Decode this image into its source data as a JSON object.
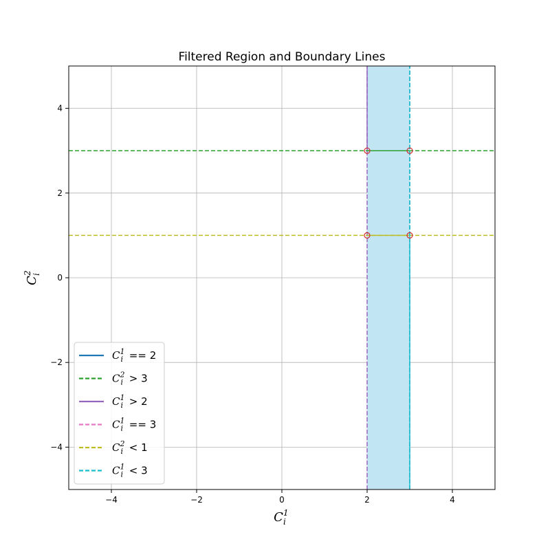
{
  "chart_data": {
    "type": "line",
    "title": "Filtered Region and Boundary Lines",
    "xlabel": {
      "base": "C",
      "sub": "i",
      "sup": "1"
    },
    "ylabel": {
      "base": "C",
      "sub": "i",
      "sup": "2"
    },
    "xlim": [
      -5,
      5
    ],
    "ylim": [
      -5,
      5
    ],
    "grid": true,
    "x_ticks": [
      -4,
      -2,
      0,
      2,
      4
    ],
    "y_ticks": [
      -4,
      -2,
      0,
      2,
      4
    ],
    "x_tick_labels": [
      "−4",
      "−2",
      "0",
      "2",
      "4"
    ],
    "y_tick_labels": [
      "−4",
      "−2",
      "0",
      "2",
      "4"
    ],
    "shaded_region": {
      "x": [
        2,
        3
      ],
      "y": [
        -5,
        5
      ],
      "color": "#c2e5f4"
    },
    "series": [
      {
        "name": "== 2",
        "var": {
          "base": "C",
          "sub": "i",
          "sup": "1"
        },
        "orientation": "vertical",
        "value": 2,
        "range": [
          3,
          5
        ],
        "color": "#9467bd",
        "dashed": false,
        "legend_color": "#1f77b4",
        "legend_dashed": false
      },
      {
        "name": "> 3",
        "var": {
          "base": "C",
          "sub": "i",
          "sup": "2"
        },
        "orientation": "horizontal",
        "value": 3,
        "range": [
          -5,
          5
        ],
        "color": "#2ca02c",
        "dashed": true,
        "legend_color": "#2ca02c",
        "legend_dashed": true
      },
      {
        "name": "> 2",
        "var": {
          "base": "C",
          "sub": "i",
          "sup": "1"
        },
        "orientation": "vertical",
        "value": 2,
        "range": [
          -5,
          5
        ],
        "color": "#9467bd",
        "dashed": true,
        "legend_color": "#9467bd",
        "legend_dashed": false
      },
      {
        "name": "== 3",
        "var": {
          "base": "C",
          "sub": "i",
          "sup": "1"
        },
        "orientation": "vertical",
        "value": 3,
        "range": [
          -5,
          5
        ],
        "color": "#e377c2",
        "dashed": true,
        "legend_color": "#e377c2",
        "legend_dashed": true
      },
      {
        "name": "< 1",
        "var": {
          "base": "C",
          "sub": "i",
          "sup": "2"
        },
        "orientation": "horizontal",
        "value": 1,
        "range": [
          -5,
          5
        ],
        "color": "#bcbd22",
        "dashed": true,
        "legend_color": "#bcbd22",
        "legend_dashed": true
      },
      {
        "name": "< 3",
        "var": {
          "base": "C",
          "sub": "i",
          "sup": "1"
        },
        "orientation": "vertical",
        "value": 3,
        "range": [
          -5,
          5
        ],
        "color": "#17becf",
        "dashed": true,
        "legend_color": "#17becf",
        "legend_dashed": true
      }
    ],
    "segments": [
      {
        "x": [
          2,
          3
        ],
        "y": [
          3,
          3
        ],
        "color": "#2ca02c",
        "dashed": false
      },
      {
        "x": [
          2,
          3
        ],
        "y": [
          1,
          1
        ],
        "color": "#bcbd22",
        "dashed": false
      },
      {
        "x": [
          3,
          3
        ],
        "y": [
          -5,
          1
        ],
        "color": "#17becf",
        "dashed": false
      },
      {
        "x": [
          3,
          3
        ],
        "y": [
          1,
          5
        ],
        "color": "#17becf",
        "dashed": true
      }
    ],
    "intersection_points": [
      {
        "x": 2,
        "y": 3
      },
      {
        "x": 3,
        "y": 3
      },
      {
        "x": 2,
        "y": 1
      },
      {
        "x": 3,
        "y": 1
      }
    ],
    "marker_color": "#d62728",
    "legend_position": "lower-left"
  }
}
